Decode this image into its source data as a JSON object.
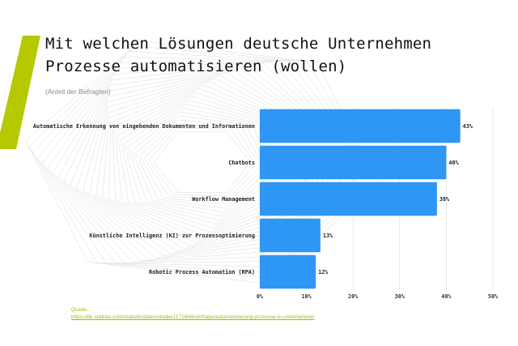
{
  "title_line1": "Mit welchen Lösungen deutsche Unternehmen",
  "title_line2": "Prozesse automatisieren (wollen)",
  "subtitle": "(Anteil der Befragten)",
  "source_label": "Quelle:",
  "source_url": "https://de.statista.com/statistik/daten/studie/1171604/umfrage/automatisierung-prozesse-in-unternehmen",
  "colors": {
    "bar": "#2e96f5",
    "accent": "#b5c800",
    "grid": "#e0e0e0"
  },
  "chart_data": {
    "type": "bar",
    "orientation": "horizontal",
    "categories": [
      "Automatische Erkennung von eingehenden Dokumenten und Informationen",
      "Chatbots",
      "Workflow Management",
      "Künstliche Intelligenz (KI) zur Prozessoptimierung",
      "Robotic Process Automation (RPA)"
    ],
    "values": [
      43,
      40,
      38,
      13,
      12
    ],
    "value_labels": [
      "43%",
      "40%",
      "38%",
      "13%",
      "12%"
    ],
    "xlim": [
      0,
      50
    ],
    "xticks": [
      0,
      10,
      20,
      30,
      40,
      50
    ],
    "xtick_labels": [
      "0%",
      "10%",
      "20%",
      "30%",
      "40%",
      "50%"
    ],
    "grid": true,
    "title": "Mit welchen Lösungen deutsche Unternehmen Prozesse automatisieren (wollen)",
    "subtitle": "(Anteil der Befragten)"
  }
}
